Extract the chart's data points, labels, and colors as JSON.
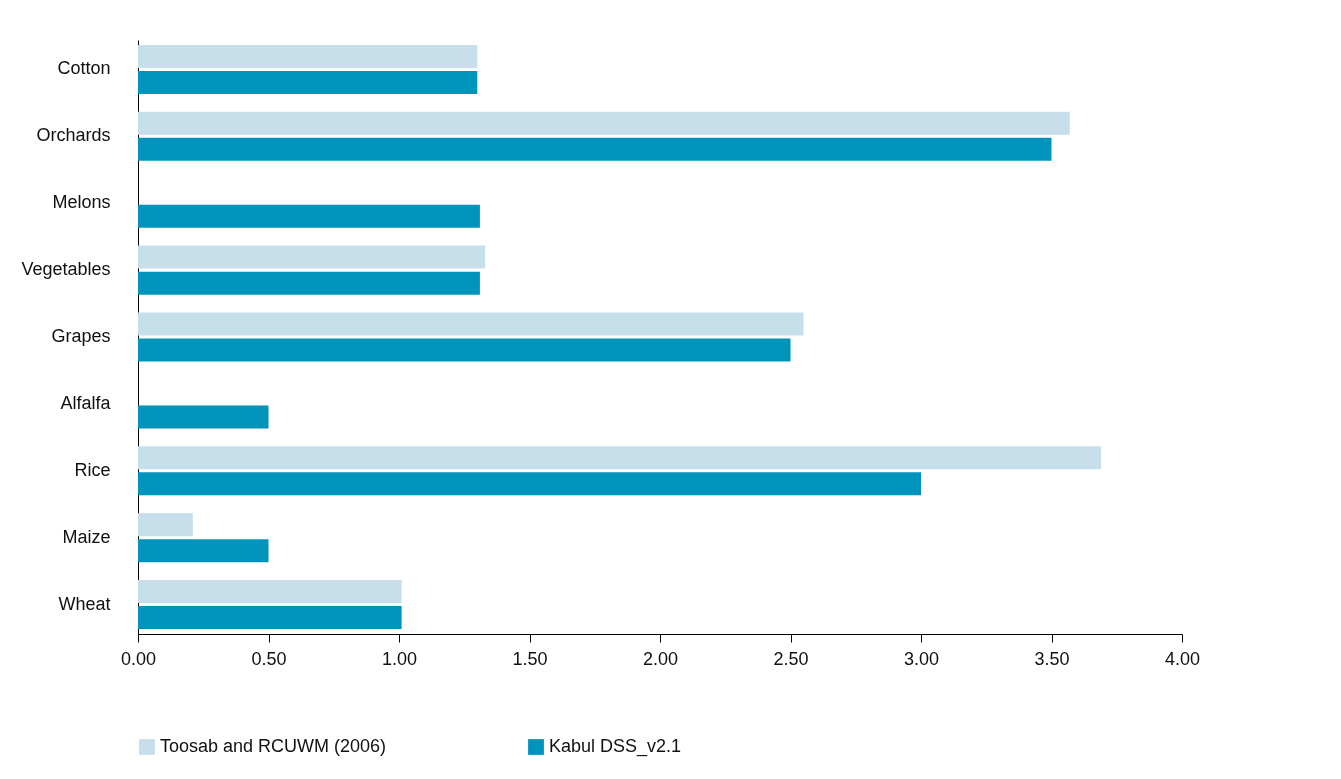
{
  "chart_data": {
    "type": "bar",
    "orientation": "horizontal",
    "categories": [
      "Cotton",
      "Orchards",
      "Melons",
      "Vegetables",
      "Grapes",
      "Alfalfa",
      "Rice",
      "Maize",
      "Wheat"
    ],
    "series": [
      {
        "name": "Toosab and RCUWM (2006)",
        "color": "#c6dfeb",
        "values": [
          1.3,
          3.57,
          0,
          1.33,
          2.55,
          0,
          3.69,
          0.21,
          1.01
        ]
      },
      {
        "name": "Kabul DSS_v2.1",
        "color": "#0093bb",
        "values": [
          1.3,
          3.5,
          1.31,
          1.31,
          2.5,
          0.5,
          3.0,
          0.5,
          1.01
        ]
      }
    ],
    "xlim": [
      0,
      4
    ],
    "xticks": [
      {
        "value": 0,
        "label": "0.00"
      },
      {
        "value": 0.5,
        "label": "0.50"
      },
      {
        "value": 1,
        "label": "1.00"
      },
      {
        "value": 1.5,
        "label": "1.50"
      },
      {
        "value": 2,
        "label": "2.00"
      },
      {
        "value": 2.5,
        "label": "2.50"
      },
      {
        "value": 3,
        "label": "3.00"
      },
      {
        "value": 3.5,
        "label": "3.50"
      },
      {
        "value": 4,
        "label": "4.00"
      }
    ],
    "grid": false,
    "legend": "bottom"
  }
}
